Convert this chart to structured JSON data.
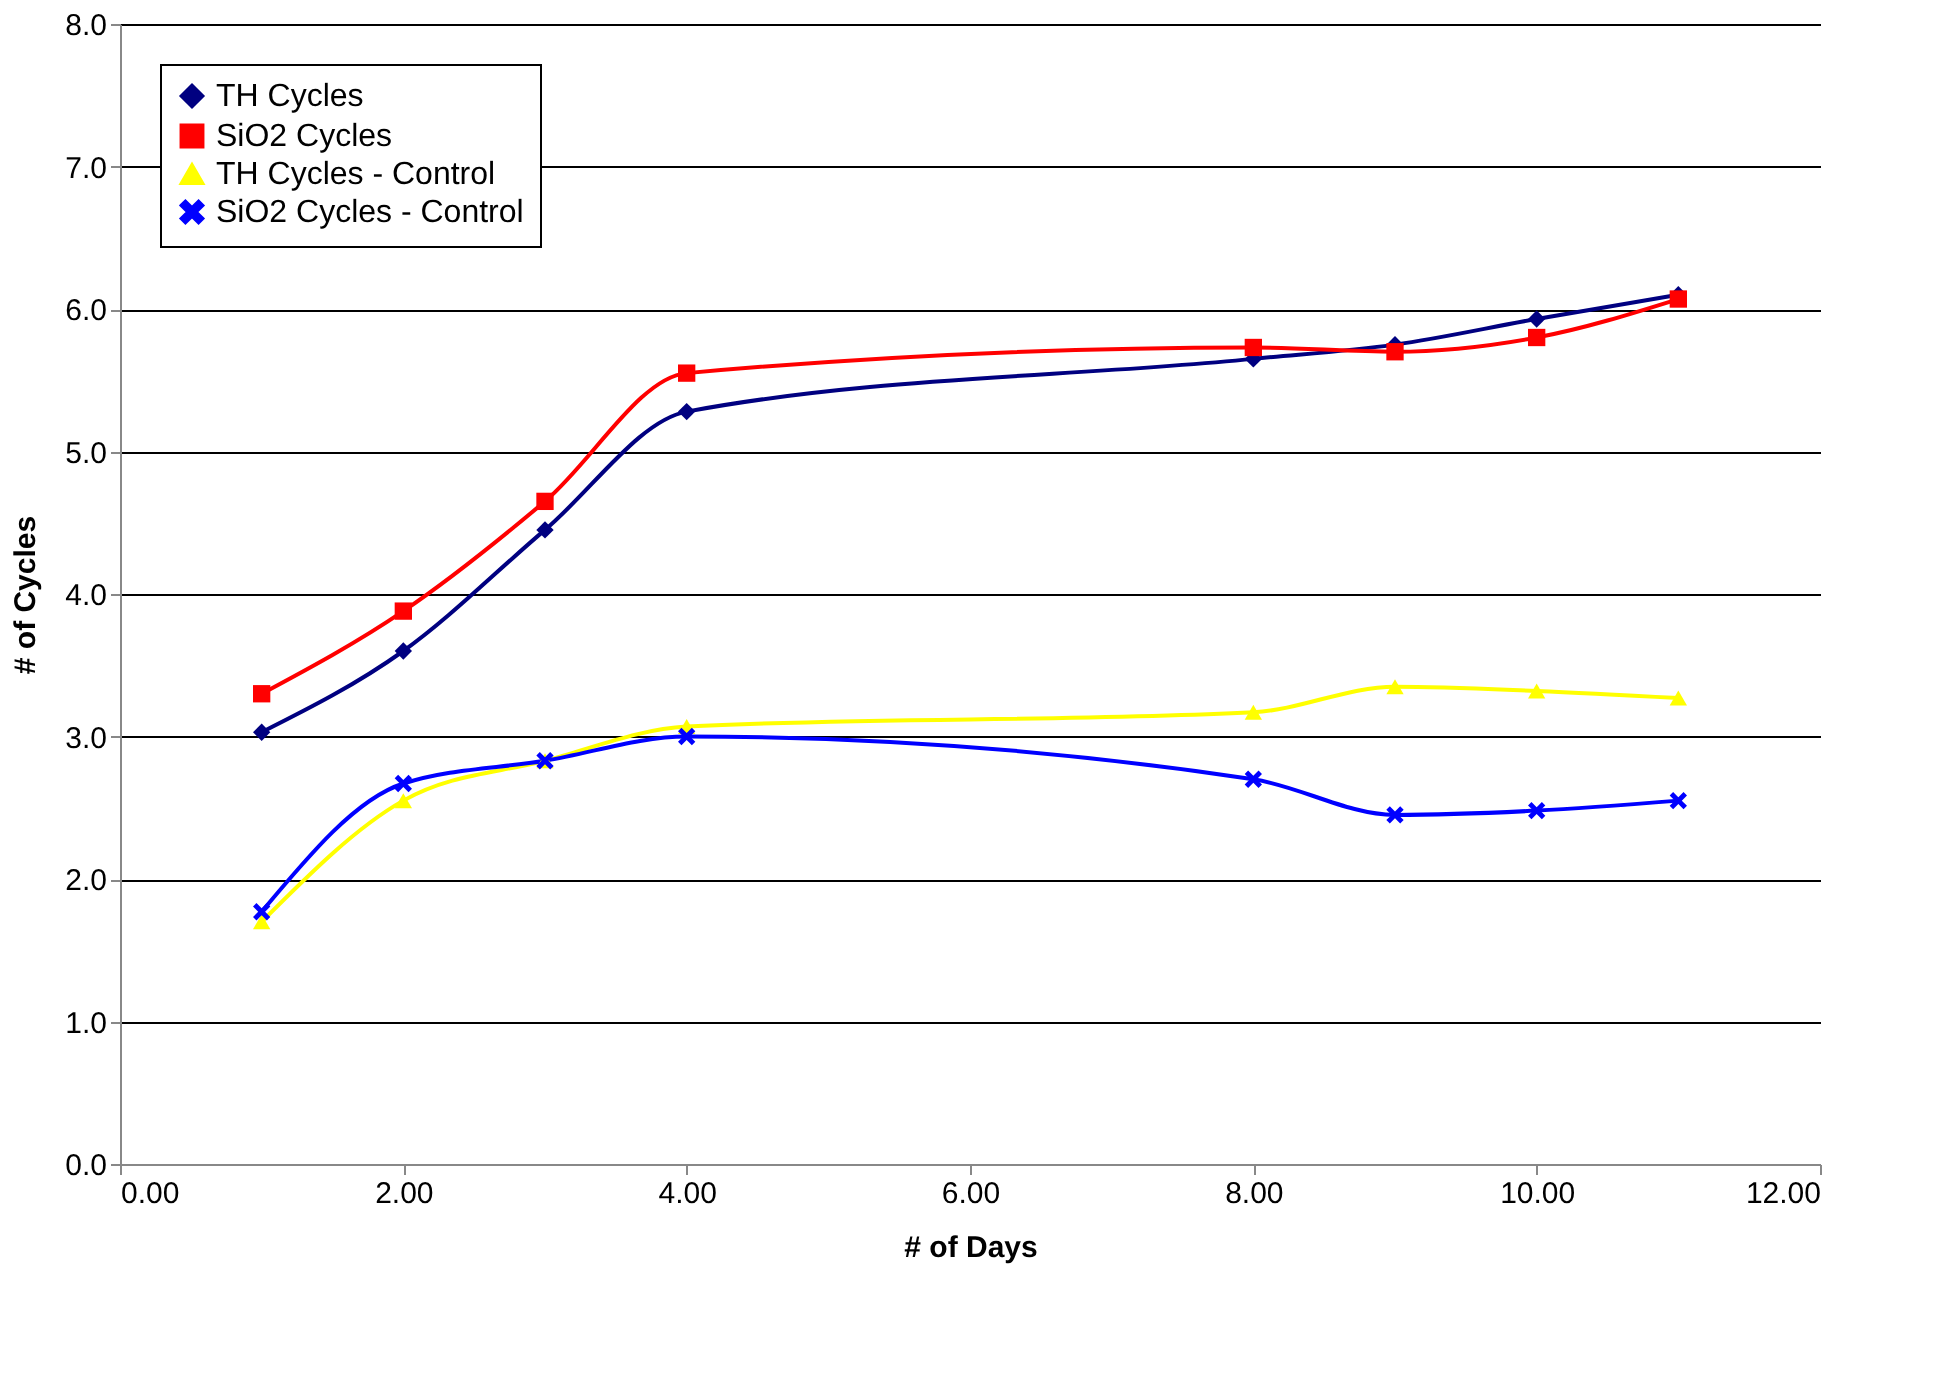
{
  "chart_data": {
    "type": "line",
    "xlabel": "# of Days",
    "ylabel": "# of Cycles",
    "x": [
      1,
      2,
      3,
      4,
      8,
      9,
      10,
      11
    ],
    "series": [
      {
        "name": "TH Cycles",
        "color": "#000080",
        "marker": "diamond",
        "values": [
          3.03,
          3.6,
          4.45,
          5.28,
          5.65,
          5.75,
          5.93,
          6.1
        ]
      },
      {
        "name": "SiO2 Cycles",
        "color": "#ff0000",
        "marker": "square",
        "values": [
          3.3,
          3.88,
          4.65,
          5.55,
          5.73,
          5.7,
          5.8,
          6.07
        ]
      },
      {
        "name": "TH Cycles - Control",
        "color": "#ffff00",
        "marker": "triangle",
        "values": [
          1.7,
          2.55,
          2.83,
          3.07,
          3.17,
          3.35,
          3.32,
          3.27
        ]
      },
      {
        "name": "SiO2 Cycles - Control",
        "color": "#0000ff",
        "marker": "cross",
        "values": [
          1.77,
          2.67,
          2.83,
          3.0,
          2.7,
          2.45,
          2.48,
          2.55
        ]
      }
    ],
    "xlim": [
      0,
      12
    ],
    "xticks": [
      {
        "value": 0,
        "label": "0.00"
      },
      {
        "value": 2,
        "label": "2.00"
      },
      {
        "value": 4,
        "label": "4.00"
      },
      {
        "value": 6,
        "label": "6.00"
      },
      {
        "value": 8,
        "label": "8.00"
      },
      {
        "value": 10,
        "label": "10.00"
      },
      {
        "value": 12,
        "label": "12.00"
      }
    ],
    "ylim": [
      0,
      8
    ],
    "yticks": [
      {
        "value": 0,
        "label": "0.0"
      },
      {
        "value": 1,
        "label": "1.0"
      },
      {
        "value": 2,
        "label": "2.0"
      },
      {
        "value": 3,
        "label": "3.0"
      },
      {
        "value": 4,
        "label": "4.0"
      },
      {
        "value": 5,
        "label": "5.0"
      },
      {
        "value": 6,
        "label": "6.0"
      },
      {
        "value": 7,
        "label": "7.0"
      },
      {
        "value": 8,
        "label": "8.0"
      }
    ],
    "grid": "y",
    "legend": "top left"
  }
}
